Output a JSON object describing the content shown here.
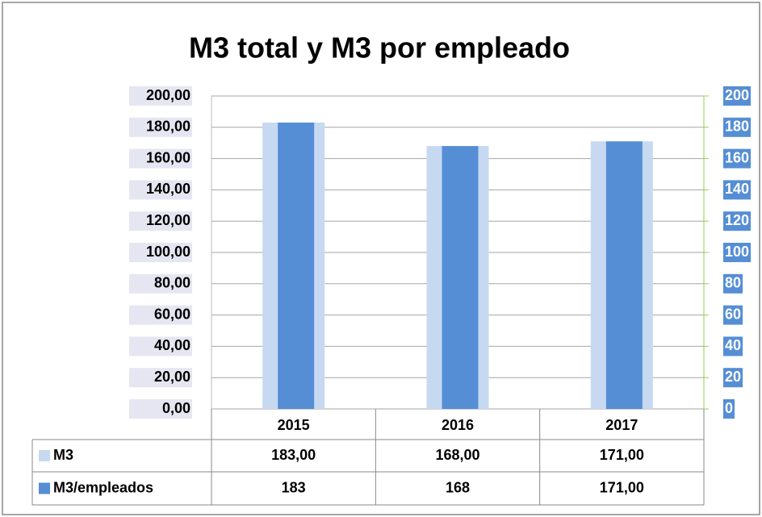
{
  "chart_data": {
    "type": "bar",
    "title": "M3 total y M3 por empleado",
    "categories": [
      "2015",
      "2016",
      "2017"
    ],
    "series": [
      {
        "name": "M3",
        "color": "#c6d9f1",
        "values": [
          183,
          168,
          171
        ],
        "value_labels": [
          "183,00",
          "168,00",
          "171,00"
        ]
      },
      {
        "name": "M3/empleados",
        "color": "#558ed5",
        "values": [
          183,
          168,
          171
        ],
        "value_labels": [
          "183",
          "168",
          "171,00"
        ],
        "axis": "y2"
      }
    ],
    "ylim": [
      0,
      200
    ],
    "yticks": [
      {
        "value": 0,
        "label": "0,00"
      },
      {
        "value": 20,
        "label": "20,00"
      },
      {
        "value": 40,
        "label": "40,00"
      },
      {
        "value": 60,
        "label": "60,00"
      },
      {
        "value": 80,
        "label": "80,00"
      },
      {
        "value": 100,
        "label": "100,00"
      },
      {
        "value": 120,
        "label": "120,00"
      },
      {
        "value": 140,
        "label": "140,00"
      },
      {
        "value": 160,
        "label": "160,00"
      },
      {
        "value": 180,
        "label": "180,00"
      },
      {
        "value": 200,
        "label": "200,00"
      }
    ],
    "y2lim": [
      0,
      200
    ],
    "y2ticks": [
      0,
      20,
      40,
      60,
      80,
      100,
      120,
      140,
      160,
      180,
      200
    ],
    "grid": true,
    "data_table": true
  }
}
